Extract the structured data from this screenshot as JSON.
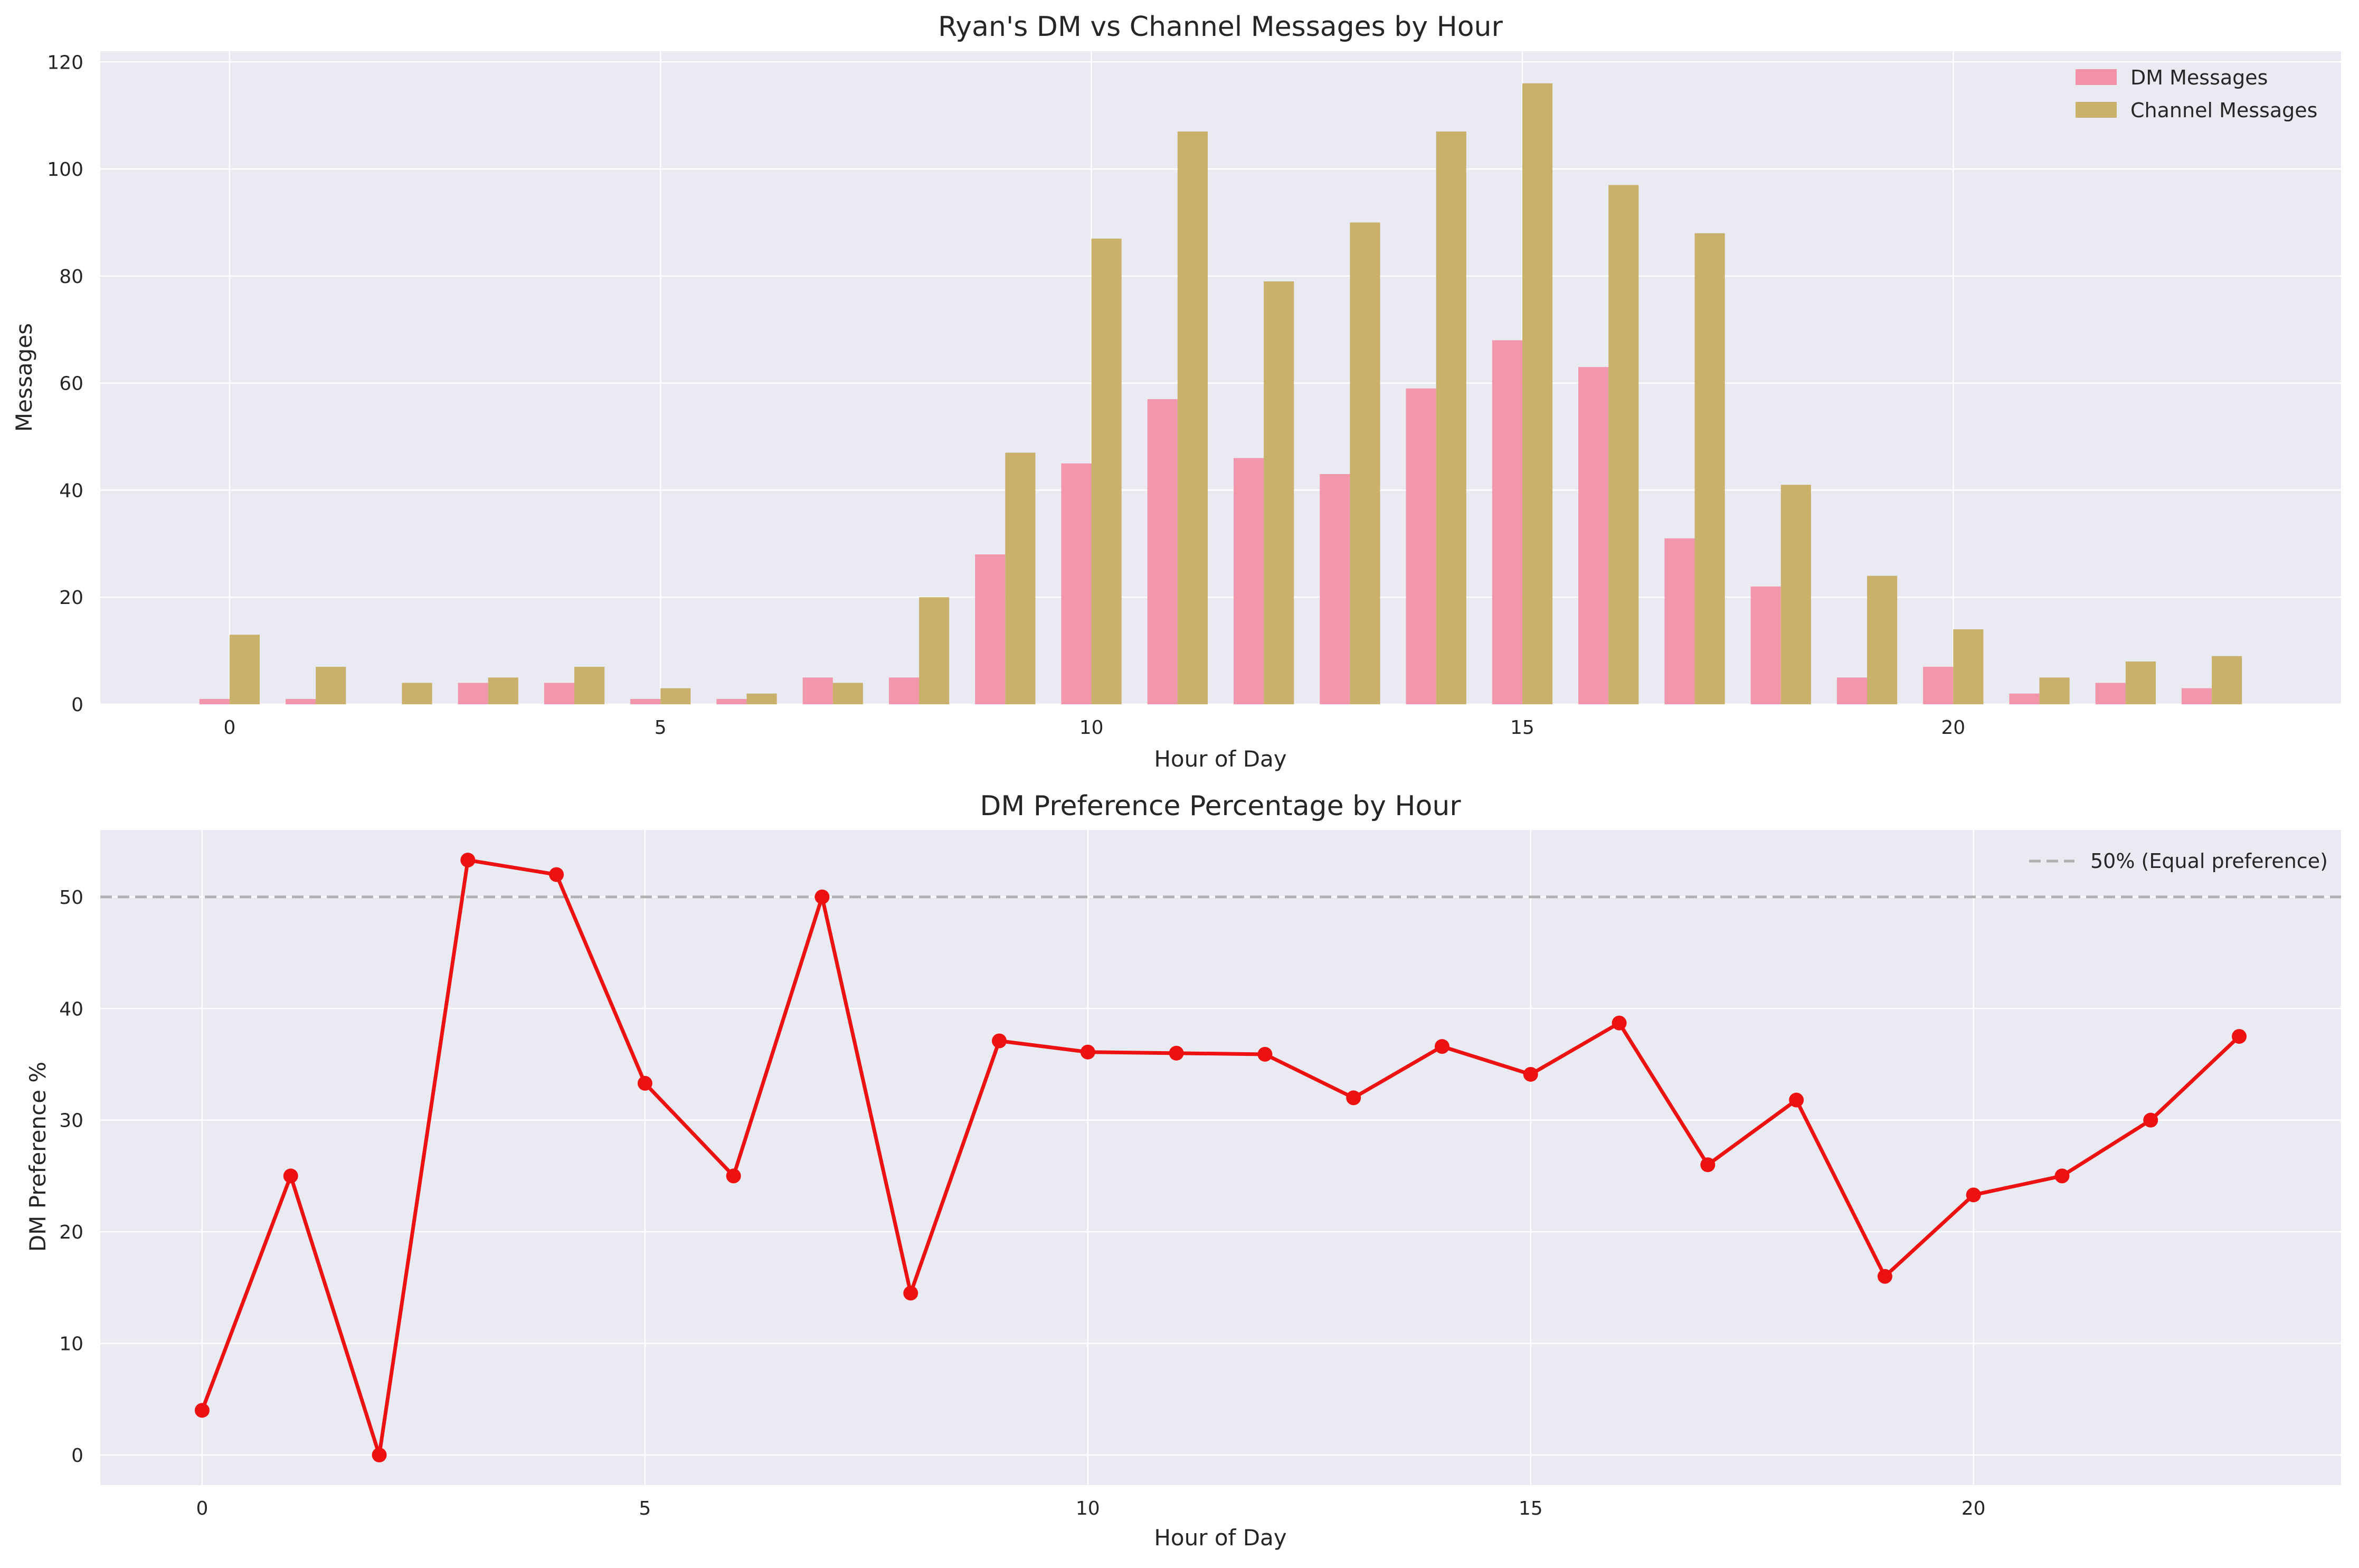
{
  "chart_data": [
    {
      "type": "bar",
      "title": "Ryan's DM vs Channel Messages by Hour",
      "xlabel": "Hour of Day",
      "ylabel": "Messages",
      "categories": [
        0,
        1,
        2,
        3,
        4,
        5,
        6,
        7,
        8,
        9,
        10,
        11,
        12,
        13,
        14,
        15,
        16,
        17,
        18,
        19,
        20,
        21,
        22,
        23
      ],
      "series": [
        {
          "name": "DM Messages",
          "color": "#f291a7",
          "values": [
            1,
            1,
            0,
            4,
            4,
            1,
            1,
            5,
            5,
            28,
            45,
            57,
            46,
            43,
            59,
            68,
            63,
            31,
            22,
            5,
            7,
            2,
            4,
            3
          ]
        },
        {
          "name": "Channel Messages",
          "color": "#c9b16c",
          "values": [
            13,
            7,
            4,
            5,
            7,
            3,
            2,
            4,
            20,
            47,
            87,
            107,
            79,
            90,
            107,
            116,
            97,
            88,
            41,
            24,
            14,
            5,
            8,
            9
          ]
        }
      ],
      "xlim": [
        -1.5,
        24.5
      ],
      "ylim": [
        0,
        122
      ],
      "xticks": [
        0,
        5,
        10,
        15,
        20
      ],
      "yticks": [
        0,
        20,
        40,
        60,
        80,
        100,
        120
      ],
      "grid": true,
      "legend": "top-right"
    },
    {
      "type": "line",
      "title": "DM Preference Percentage by Hour",
      "xlabel": "Hour of Day",
      "ylabel": "DM Preference %",
      "x": [
        0,
        1,
        2,
        3,
        4,
        5,
        6,
        7,
        8,
        9,
        10,
        11,
        12,
        13,
        14,
        15,
        16,
        17,
        18,
        19,
        20,
        21,
        22,
        23
      ],
      "series": [
        {
          "name": "",
          "color": "#ee1111",
          "values": [
            4.0,
            25.0,
            0.0,
            53.3,
            52.0,
            33.3,
            25.0,
            50.0,
            14.5,
            37.1,
            36.1,
            36.0,
            35.9,
            32.0,
            36.6,
            34.1,
            38.7,
            26.0,
            31.8,
            16.0,
            23.3,
            25.0,
            30.0,
            37.5
          ]
        }
      ],
      "reference_line": {
        "y": 50,
        "label": "50% (Equal preference)",
        "color": "#b0b0b0"
      },
      "xlim": [
        -1.15,
        24.15
      ],
      "ylim": [
        -2.7,
        56
      ],
      "xticks": [
        0,
        5,
        10,
        15,
        20
      ],
      "yticks": [
        0,
        10,
        20,
        30,
        40,
        50
      ],
      "grid": true,
      "legend": "top-right"
    }
  ]
}
